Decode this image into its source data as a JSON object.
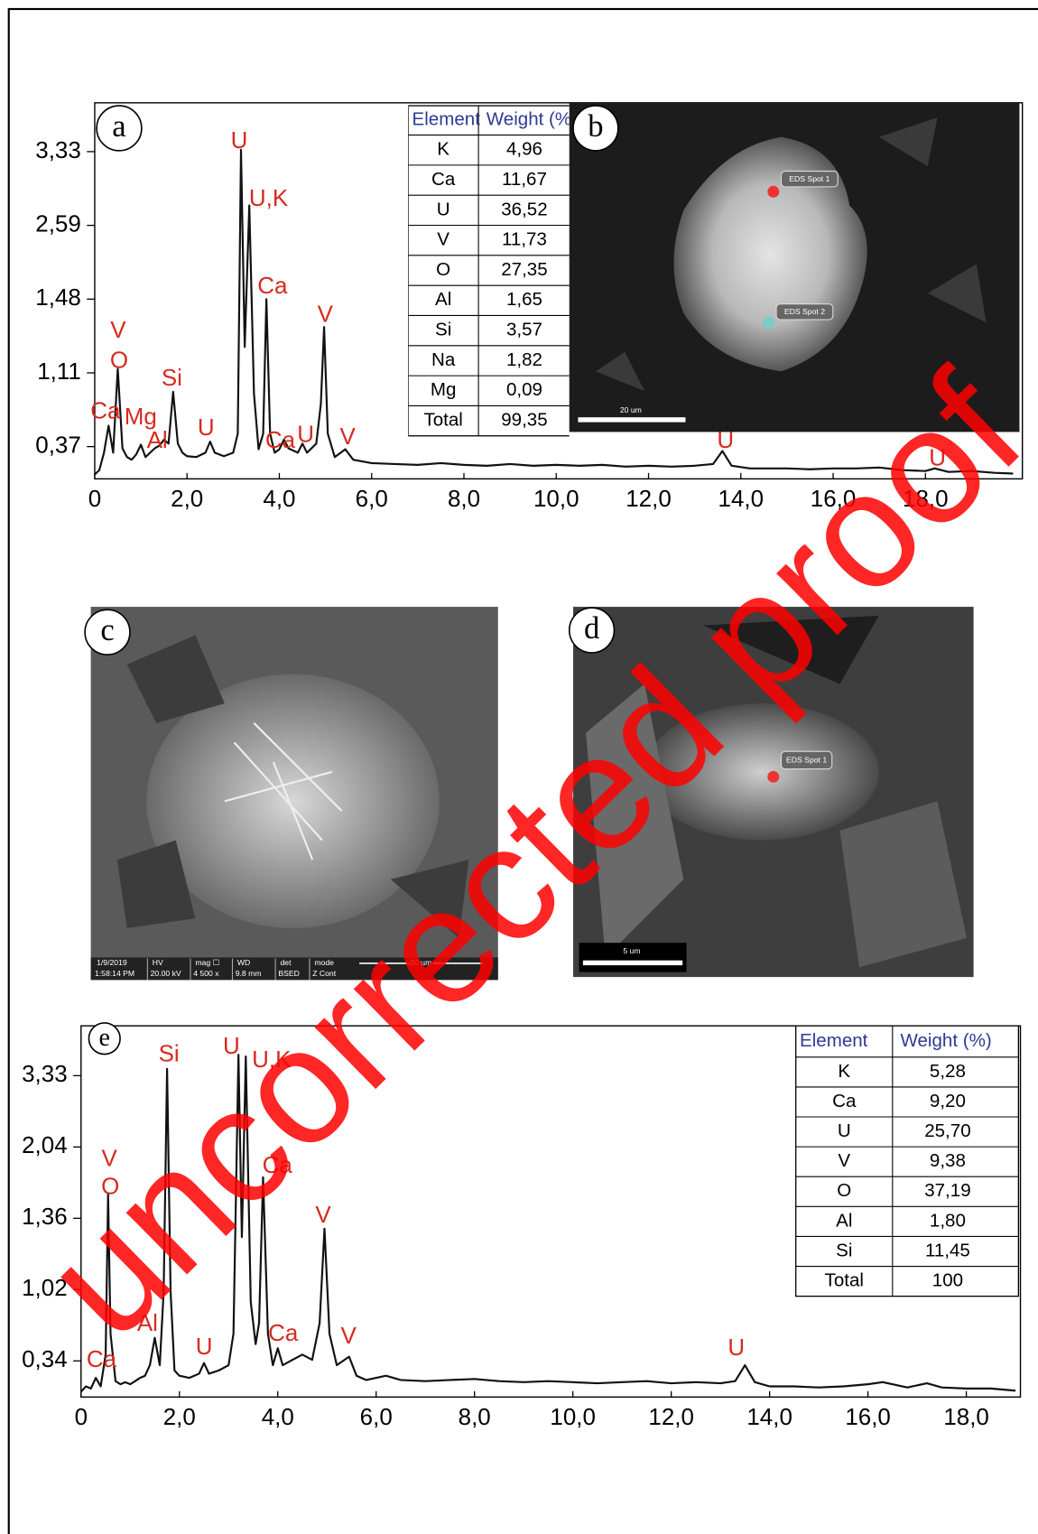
{
  "chart_data": [
    {
      "type": "line",
      "panel": "a",
      "x": [
        0,
        0.1,
        0.2,
        0.3,
        0.4,
        0.5,
        0.6,
        0.7,
        0.8,
        0.9,
        1.0,
        1.1,
        1.2,
        1.3,
        1.4,
        1.5,
        1.6,
        1.7,
        1.8,
        1.9,
        2.0,
        2.2,
        2.4,
        2.5,
        2.6,
        2.8,
        3.0,
        3.1,
        3.17,
        3.25,
        3.35,
        3.45,
        3.55,
        3.65,
        3.72,
        3.8,
        3.9,
        4.0,
        4.1,
        4.2,
        4.4,
        4.5,
        4.6,
        4.8,
        4.9,
        4.97,
        5.05,
        5.2,
        5.43,
        5.6,
        5.8,
        6.0,
        6.5,
        7.0,
        7.5,
        8.0,
        8.5,
        9.0,
        9.5,
        10.0,
        10.5,
        11.0,
        11.5,
        12.0,
        12.5,
        13.0,
        13.4,
        13.6,
        13.8,
        14.2,
        15.0,
        15.5,
        16.0,
        16.5,
        17.0,
        17.5,
        18.0,
        18.2,
        18.5,
        19.0,
        19.5,
        19.9
      ],
      "values": [
        0.05,
        0.1,
        0.3,
        0.58,
        0.3,
        1.13,
        0.35,
        0.25,
        0.22,
        0.28,
        0.39,
        0.25,
        0.3,
        0.35,
        0.38,
        0.44,
        0.4,
        0.92,
        0.4,
        0.3,
        0.26,
        0.25,
        0.3,
        0.42,
        0.3,
        0.26,
        0.3,
        0.5,
        3.35,
        1.24,
        2.79,
        0.9,
        0.34,
        0.5,
        1.48,
        0.5,
        0.3,
        0.34,
        0.44,
        0.35,
        0.3,
        0.4,
        0.3,
        0.4,
        0.8,
        1.34,
        0.5,
        0.25,
        0.34,
        0.22,
        0.2,
        0.18,
        0.17,
        0.16,
        0.18,
        0.16,
        0.15,
        0.17,
        0.15,
        0.16,
        0.15,
        0.16,
        0.14,
        0.15,
        0.14,
        0.15,
        0.17,
        0.32,
        0.15,
        0.12,
        0.12,
        0.11,
        0.12,
        0.12,
        0.13,
        0.1,
        0.09,
        0.12,
        0.08,
        0.09,
        0.07,
        0.06
      ],
      "color": "#111111",
      "xlim": [
        0,
        20.1
      ],
      "xticks": [
        0,
        {
          "value": 2,
          "label": "2,0"
        },
        {
          "value": 4,
          "label": "4,0"
        },
        {
          "value": 6,
          "label": "6,0"
        },
        {
          "value": 8,
          "label": "8,0"
        },
        {
          "value": 10,
          "label": "10,0"
        },
        {
          "value": 12,
          "label": "12,0"
        },
        {
          "value": 14,
          "label": "14,0"
        },
        {
          "value": 16,
          "label": "16,0"
        },
        {
          "value": 18,
          "label": "18,0"
        }
      ],
      "ylim": [
        0,
        3.87
      ],
      "yticks": [
        {
          "value": 0.37,
          "label": "0,37"
        },
        {
          "value": 1.11,
          "label": "1,11"
        },
        {
          "value": 1.48,
          "label": "1,48"
        },
        {
          "value": 2.59,
          "label": "2,59"
        },
        {
          "value": 3.33,
          "label": "3,33"
        }
      ],
      "y_scale": "piecewise",
      "annotations": [
        "U",
        "U,K",
        "Ca",
        "V",
        "V",
        "O",
        "Si",
        "Ca",
        "Mg",
        "Al",
        "U",
        "Ca",
        "U",
        "V",
        "U",
        "U"
      ],
      "annotation_color": "#d62a1e"
    },
    {
      "type": "line",
      "panel": "e",
      "x": [
        0,
        0.1,
        0.2,
        0.3,
        0.4,
        0.5,
        0.55,
        0.6,
        0.7,
        0.8,
        0.9,
        1.0,
        1.1,
        1.2,
        1.3,
        1.4,
        1.5,
        1.6,
        1.68,
        1.75,
        1.82,
        1.9,
        2.0,
        2.2,
        2.4,
        2.5,
        2.6,
        2.8,
        3.0,
        3.1,
        3.2,
        3.27,
        3.35,
        3.45,
        3.55,
        3.62,
        3.7,
        3.8,
        3.9,
        4.0,
        4.1,
        4.3,
        4.5,
        4.7,
        4.85,
        4.95,
        5.05,
        5.2,
        5.45,
        5.6,
        5.8,
        6.0,
        6.2,
        6.5,
        7.0,
        7.5,
        8.0,
        8.5,
        9.0,
        9.5,
        10.0,
        10.5,
        11.0,
        11.5,
        12.0,
        12.5,
        13.0,
        13.3,
        13.5,
        13.7,
        14.0,
        14.5,
        15.0,
        15.5,
        16.0,
        16.3,
        16.8,
        17.2,
        17.5,
        18.0,
        18.5,
        19.0
      ],
      "values": [
        0.05,
        0.1,
        0.08,
        0.18,
        0.1,
        0.4,
        1.59,
        0.6,
        0.15,
        0.12,
        0.14,
        0.12,
        0.15,
        0.18,
        0.2,
        0.3,
        0.56,
        0.3,
        1.0,
        3.45,
        1.0,
        0.25,
        0.2,
        0.18,
        0.22,
        0.32,
        0.22,
        0.25,
        0.3,
        0.6,
        3.7,
        1.27,
        3.67,
        0.9,
        0.5,
        0.7,
        1.75,
        0.6,
        0.3,
        0.46,
        0.3,
        0.35,
        0.4,
        0.35,
        0.7,
        1.31,
        0.6,
        0.3,
        0.38,
        0.2,
        0.16,
        0.18,
        0.2,
        0.16,
        0.15,
        0.16,
        0.17,
        0.15,
        0.14,
        0.15,
        0.14,
        0.13,
        0.14,
        0.15,
        0.13,
        0.14,
        0.13,
        0.15,
        0.3,
        0.14,
        0.1,
        0.1,
        0.09,
        0.1,
        0.12,
        0.14,
        0.09,
        0.13,
        0.09,
        0.08,
        0.08,
        0.06
      ],
      "color": "#111111",
      "xlim": [
        0,
        19.1
      ],
      "xticks": [
        0,
        {
          "value": 2,
          "label": "2,0"
        },
        {
          "value": 4,
          "label": "4,0"
        },
        {
          "value": 6,
          "label": "6,0"
        },
        {
          "value": 8,
          "label": "8,0"
        },
        {
          "value": 10,
          "label": "10,0"
        },
        {
          "value": 12,
          "label": "12,0"
        },
        {
          "value": 14,
          "label": "14,0"
        },
        {
          "value": 16,
          "label": "16,0"
        },
        {
          "value": 18,
          "label": "18,0"
        }
      ],
      "ylim": [
        0,
        4.21
      ],
      "yticks": [
        {
          "value": 0.34,
          "label": "0,34"
        },
        {
          "value": 1.02,
          "label": "1,02"
        },
        {
          "value": 1.36,
          "label": "1,36"
        },
        {
          "value": 2.04,
          "label": "2,04"
        },
        {
          "value": 3.33,
          "label": "3,33"
        }
      ],
      "y_scale": "piecewise",
      "annotations": [
        "Si",
        "U",
        "U,K",
        "V",
        "O",
        "Ca",
        "V",
        "Al",
        "U",
        "Ca",
        "V",
        "Ca",
        "U"
      ],
      "annotation_color": "#d62a1e"
    }
  ],
  "tables": [
    {
      "header": [
        "Element",
        "Weight (%)"
      ],
      "rows": [
        [
          "K",
          "4,96"
        ],
        [
          "Ca",
          "11,67"
        ],
        [
          "U",
          "36,52"
        ],
        [
          "V",
          "11,73"
        ],
        [
          "O",
          "27,35"
        ],
        [
          "Al",
          "1,65"
        ],
        [
          "Si",
          "3,57"
        ],
        [
          "Na",
          "1,82"
        ],
        [
          "Mg",
          "0,09"
        ],
        [
          "Total",
          "99,35"
        ]
      ]
    },
    {
      "header": [
        "Element",
        "Weight (%)"
      ],
      "rows": [
        [
          "K",
          "5,28"
        ],
        [
          "Ca",
          "9,20"
        ],
        [
          "U",
          "25,70"
        ],
        [
          "V",
          "9,38"
        ],
        [
          "O",
          "37,19"
        ],
        [
          "Al",
          "1,80"
        ],
        [
          "Si",
          "11,45"
        ],
        [
          "Total",
          "100"
        ]
      ]
    }
  ],
  "panels": [
    "a",
    "b",
    "c",
    "d",
    "e"
  ],
  "images": {
    "b": {
      "spots": [
        "EDS Spot 1",
        "EDS Spot 2"
      ],
      "scale": "20 um"
    },
    "c": {
      "info_header": [
        "1/9/2019",
        "HV",
        "mag ☐",
        "WD",
        "det",
        "mode"
      ],
      "info_values": [
        "1:58:14 PM",
        "20.00 kV",
        "4 500 x",
        "9.8 mm",
        "BSED",
        "Z Cont"
      ],
      "scale": "20 µm"
    },
    "d": {
      "spots": [
        "EDS Spot 1"
      ],
      "scale": "5 um"
    }
  },
  "watermark": "uncorrected proof"
}
